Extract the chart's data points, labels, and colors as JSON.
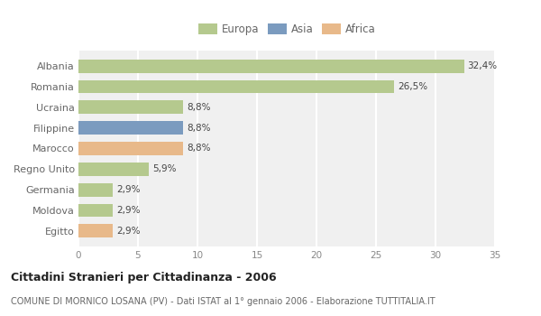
{
  "categories": [
    "Albania",
    "Romania",
    "Ucraina",
    "Filippine",
    "Marocco",
    "Regno Unito",
    "Germania",
    "Moldova",
    "Egitto"
  ],
  "values": [
    32.4,
    26.5,
    8.8,
    8.8,
    8.8,
    5.9,
    2.9,
    2.9,
    2.9
  ],
  "labels": [
    "32,4%",
    "26,5%",
    "8,8%",
    "8,8%",
    "8,8%",
    "5,9%",
    "2,9%",
    "2,9%",
    "2,9%"
  ],
  "colors": [
    "#b5c98e",
    "#b5c98e",
    "#b5c98e",
    "#7b9bbf",
    "#e8b98a",
    "#b5c98e",
    "#b5c98e",
    "#b5c98e",
    "#e8b98a"
  ],
  "legend_labels": [
    "Europa",
    "Asia",
    "Africa"
  ],
  "legend_colors": [
    "#b5c98e",
    "#7b9bbf",
    "#e8b98a"
  ],
  "title": "Cittadini Stranieri per Cittadinanza - 2006",
  "subtitle": "COMUNE DI MORNICO LOSANA (PV) - Dati ISTAT al 1° gennaio 2006 - Elaborazione TUTTITALIA.IT",
  "xlim": [
    0,
    35
  ],
  "xticks": [
    0,
    5,
    10,
    15,
    20,
    25,
    30,
    35
  ],
  "background_color": "#ffffff",
  "plot_bg_color": "#f0f0f0",
  "grid_color": "#ffffff"
}
